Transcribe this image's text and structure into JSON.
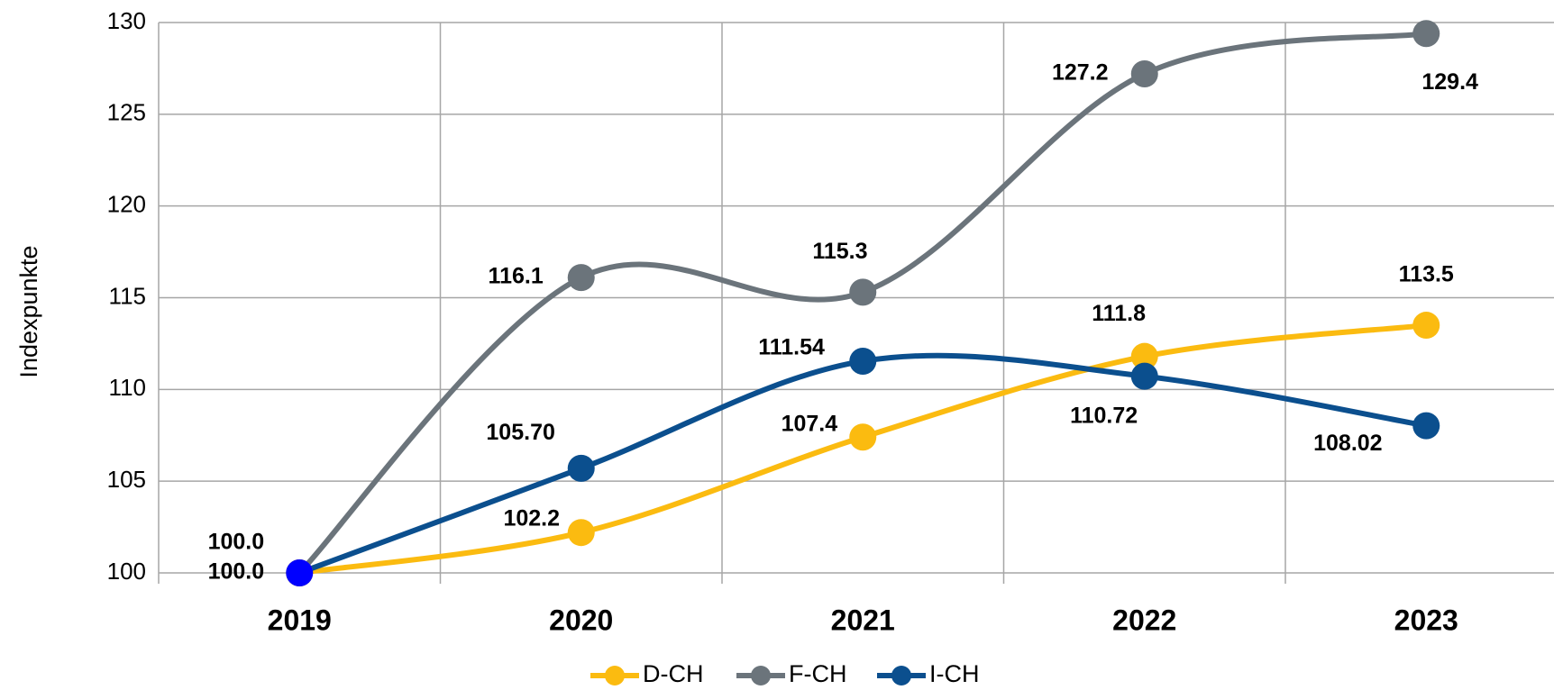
{
  "chart_data": {
    "type": "line",
    "y_label": "Indexpunkte",
    "categories": [
      "2019",
      "2020",
      "2021",
      "2022",
      "2023"
    ],
    "series": [
      {
        "name": "D-CH",
        "color": "#fbbb10",
        "values": [
          100,
          102.2,
          107.4,
          111.8,
          113.5
        ],
        "value_labels": [
          "100.0",
          "102.2",
          "107.4",
          "111.8",
          "113.5"
        ]
      },
      {
        "name": "F-CH",
        "color": "#6b747b",
        "values": [
          100,
          116.1,
          115.3,
          127.2,
          129.4
        ],
        "value_labels": [
          "100.0",
          "116.1",
          "115.3",
          "127.2",
          "129.4"
        ]
      },
      {
        "name": "I-CH",
        "color": "#0b4f8e",
        "values": [
          100,
          105.7,
          111.54,
          110.72,
          108.02
        ],
        "value_labels": [
          null,
          "105.70",
          "111.54",
          "110.72",
          "108.02"
        ]
      }
    ],
    "ylim": [
      100,
      130
    ],
    "yticks": [
      100,
      105,
      110,
      115,
      120,
      125,
      130
    ],
    "grid": true,
    "legend": "bottom"
  }
}
